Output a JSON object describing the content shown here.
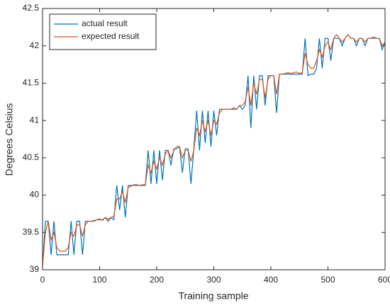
{
  "chart_data": {
    "type": "line",
    "xlabel": "Training sample",
    "ylabel": "Degrees Celsius",
    "x": [
      0,
      5,
      10,
      15,
      20,
      25,
      30,
      35,
      40,
      45,
      50,
      55,
      60,
      65,
      70,
      75,
      80,
      85,
      90,
      95,
      100,
      105,
      110,
      115,
      120,
      125,
      130,
      135,
      140,
      145,
      150,
      155,
      160,
      165,
      170,
      175,
      180,
      185,
      190,
      195,
      200,
      205,
      210,
      215,
      220,
      225,
      230,
      235,
      240,
      245,
      250,
      255,
      260,
      265,
      270,
      275,
      280,
      285,
      290,
      295,
      300,
      305,
      310,
      315,
      320,
      325,
      330,
      335,
      340,
      345,
      350,
      355,
      360,
      365,
      370,
      375,
      380,
      385,
      390,
      395,
      400,
      405,
      410,
      415,
      420,
      425,
      430,
      435,
      440,
      445,
      450,
      455,
      460,
      465,
      470,
      475,
      480,
      485,
      490,
      495,
      500,
      505,
      510,
      515,
      520,
      525,
      530,
      535,
      540,
      545,
      550,
      555,
      560,
      565,
      570,
      575,
      580,
      585,
      590,
      595,
      600
    ],
    "series": [
      {
        "name": "actual result",
        "color": "#0072bd",
        "values": [
          39.05,
          39.65,
          39.65,
          39.2,
          39.65,
          39.2,
          39.2,
          39.2,
          39.2,
          39.2,
          39.65,
          39.2,
          39.65,
          39.65,
          39.2,
          39.65,
          39.65,
          39.65,
          39.65,
          39.67,
          39.67,
          39.67,
          39.7,
          39.65,
          39.7,
          39.67,
          40.13,
          39.8,
          40.13,
          39.7,
          40.13,
          40.13,
          40.13,
          40.13,
          40.13,
          40.13,
          40.13,
          40.6,
          40.15,
          40.6,
          40.15,
          40.6,
          40.2,
          40.6,
          40.6,
          40.4,
          40.62,
          40.62,
          40.65,
          40.3,
          40.62,
          40.62,
          40.15,
          40.62,
          41.13,
          40.6,
          41.13,
          40.7,
          41.13,
          40.65,
          41.13,
          40.8,
          41.15,
          41.15,
          41.15,
          41.15,
          41.15,
          41.15,
          41.15,
          41.2,
          41.15,
          41.2,
          41.6,
          40.9,
          41.6,
          41.15,
          41.6,
          41.6,
          41.2,
          41.6,
          41.6,
          41.6,
          41.1,
          41.62,
          41.62,
          41.62,
          41.62,
          41.62,
          41.62,
          41.62,
          41.62,
          41.62,
          42.1,
          41.6,
          41.62,
          41.62,
          41.7,
          42.1,
          41.7,
          42.1,
          42.1,
          41.8,
          42.1,
          42.1,
          42.1,
          42.0,
          42.1,
          42.15,
          42.1,
          42.1,
          42.0,
          42.1,
          42.1,
          42.0,
          42.1,
          42.1,
          42.1,
          42.1,
          42.1,
          41.95,
          42.05
        ]
      },
      {
        "name": "expected result",
        "color": "#d95319",
        "values": [
          39.05,
          39.5,
          39.65,
          39.4,
          39.5,
          39.3,
          39.25,
          39.25,
          39.25,
          39.3,
          39.5,
          39.45,
          39.6,
          39.6,
          39.45,
          39.6,
          39.65,
          39.65,
          39.66,
          39.67,
          39.68,
          39.66,
          39.7,
          39.68,
          39.7,
          39.72,
          39.95,
          39.95,
          40.05,
          39.9,
          40.1,
          40.12,
          40.14,
          40.14,
          40.13,
          40.14,
          40.14,
          40.4,
          40.3,
          40.45,
          40.35,
          40.5,
          40.4,
          40.55,
          40.6,
          40.5,
          40.6,
          40.65,
          40.65,
          40.5,
          40.6,
          40.6,
          40.45,
          40.6,
          40.9,
          40.8,
          41.0,
          40.85,
          41.0,
          40.8,
          41.0,
          40.95,
          41.1,
          41.15,
          41.15,
          41.15,
          41.15,
          41.17,
          41.15,
          41.2,
          41.2,
          41.25,
          41.45,
          41.2,
          41.5,
          41.35,
          41.55,
          41.55,
          41.3,
          41.55,
          41.6,
          41.6,
          41.35,
          41.62,
          41.62,
          41.63,
          41.64,
          41.63,
          41.64,
          41.65,
          41.63,
          41.64,
          41.9,
          41.75,
          41.7,
          41.7,
          41.8,
          41.95,
          41.85,
          42.0,
          42.05,
          41.95,
          42.1,
          42.15,
          42.1,
          42.05,
          42.1,
          42.15,
          42.1,
          42.1,
          42.05,
          42.1,
          42.1,
          42.05,
          42.1,
          42.1,
          42.12,
          42.1,
          42.1,
          42.0,
          42.05
        ]
      }
    ],
    "xlim": [
      0,
      600
    ],
    "xticks": [
      0,
      100,
      200,
      300,
      400,
      500,
      600
    ],
    "ylim": [
      39,
      42.5
    ],
    "yticks": [
      39,
      39.5,
      40,
      40.5,
      41,
      41.5,
      42,
      42.5
    ],
    "legend": "upper left"
  }
}
